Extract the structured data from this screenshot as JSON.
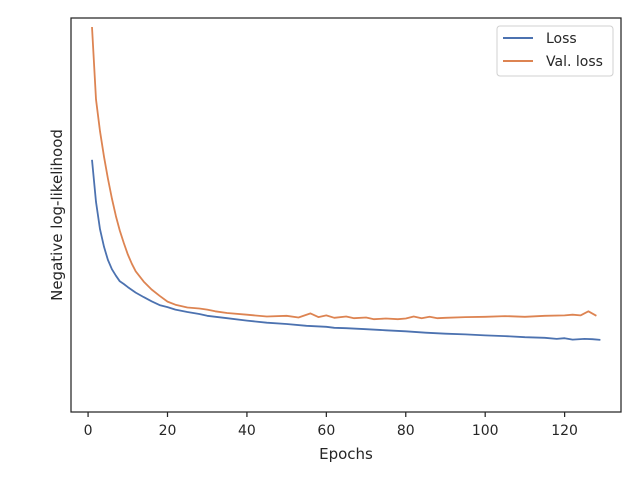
{
  "chart_data": {
    "type": "line",
    "title": "",
    "xlabel": "Epochs",
    "ylabel": "Negative log-likelihood",
    "xlim": [
      -4.3,
      134.2
    ],
    "ylim": [
      0,
      100
    ],
    "xticks": [
      0,
      20,
      40,
      60,
      80,
      100,
      120
    ],
    "xtick_labels": [
      "0",
      "20",
      "40",
      "60",
      "80",
      "100",
      "120"
    ],
    "yticks_visible": false,
    "grid": false,
    "legend": {
      "position": "top-right"
    },
    "series": [
      {
        "name": "Loss",
        "color": "#4c72b0",
        "points": [
          [
            1,
            61.5
          ],
          [
            2,
            49.3
          ],
          [
            3,
            41.4
          ],
          [
            4,
            36.3
          ],
          [
            5,
            32.5
          ],
          [
            6,
            29.8
          ],
          [
            7,
            27.9
          ],
          [
            8,
            26.3
          ],
          [
            9,
            25.5
          ],
          [
            10,
            24.6
          ],
          [
            12,
            23.0
          ],
          [
            14,
            21.7
          ],
          [
            16,
            20.5
          ],
          [
            18,
            19.4
          ],
          [
            20,
            18.8
          ],
          [
            22,
            18.1
          ],
          [
            25,
            17.4
          ],
          [
            28,
            16.8
          ],
          [
            30,
            16.3
          ],
          [
            35,
            15.6
          ],
          [
            40,
            14.9
          ],
          [
            45,
            14.3
          ],
          [
            50,
            13.9
          ],
          [
            55,
            13.4
          ],
          [
            60,
            13.1
          ],
          [
            62,
            12.8
          ],
          [
            65,
            12.7
          ],
          [
            70,
            12.4
          ],
          [
            75,
            12.1
          ],
          [
            80,
            11.8
          ],
          [
            85,
            11.4
          ],
          [
            90,
            11.1
          ],
          [
            95,
            10.9
          ],
          [
            100,
            10.6
          ],
          [
            105,
            10.4
          ],
          [
            110,
            10.1
          ],
          [
            115,
            9.9
          ],
          [
            118,
            9.6
          ],
          [
            120,
            9.8
          ],
          [
            122,
            9.4
          ],
          [
            125,
            9.6
          ],
          [
            127,
            9.5
          ],
          [
            129,
            9.3
          ]
        ]
      },
      {
        "name": "Val. loss",
        "color": "#dd8452",
        "points": [
          [
            1,
            100
          ],
          [
            2,
            79.0
          ],
          [
            3,
            69.8
          ],
          [
            4,
            62.4
          ],
          [
            5,
            56.1
          ],
          [
            6,
            50.3
          ],
          [
            7,
            45.2
          ],
          [
            8,
            41.0
          ],
          [
            9,
            37.4
          ],
          [
            10,
            34.1
          ],
          [
            11,
            31.4
          ],
          [
            12,
            29.2
          ],
          [
            14,
            26.2
          ],
          [
            16,
            23.9
          ],
          [
            18,
            22.1
          ],
          [
            20,
            20.4
          ],
          [
            22,
            19.5
          ],
          [
            25,
            18.7
          ],
          [
            28,
            18.4
          ],
          [
            30,
            18.1
          ],
          [
            32,
            17.6
          ],
          [
            35,
            17.1
          ],
          [
            40,
            16.6
          ],
          [
            45,
            16.1
          ],
          [
            50,
            16.3
          ],
          [
            53,
            15.8
          ],
          [
            56,
            17.0
          ],
          [
            58,
            15.9
          ],
          [
            60,
            16.4
          ],
          [
            62,
            15.7
          ],
          [
            65,
            16.1
          ],
          [
            67,
            15.6
          ],
          [
            70,
            15.8
          ],
          [
            72,
            15.3
          ],
          [
            75,
            15.5
          ],
          [
            78,
            15.3
          ],
          [
            80,
            15.5
          ],
          [
            82,
            16.1
          ],
          [
            84,
            15.6
          ],
          [
            86,
            16.0
          ],
          [
            88,
            15.6
          ],
          [
            90,
            15.7
          ],
          [
            95,
            15.9
          ],
          [
            100,
            16.0
          ],
          [
            105,
            16.2
          ],
          [
            110,
            16.0
          ],
          [
            115,
            16.3
          ],
          [
            120,
            16.4
          ],
          [
            122,
            16.6
          ],
          [
            124,
            16.4
          ],
          [
            126,
            17.6
          ],
          [
            128,
            16.3
          ]
        ]
      }
    ]
  }
}
